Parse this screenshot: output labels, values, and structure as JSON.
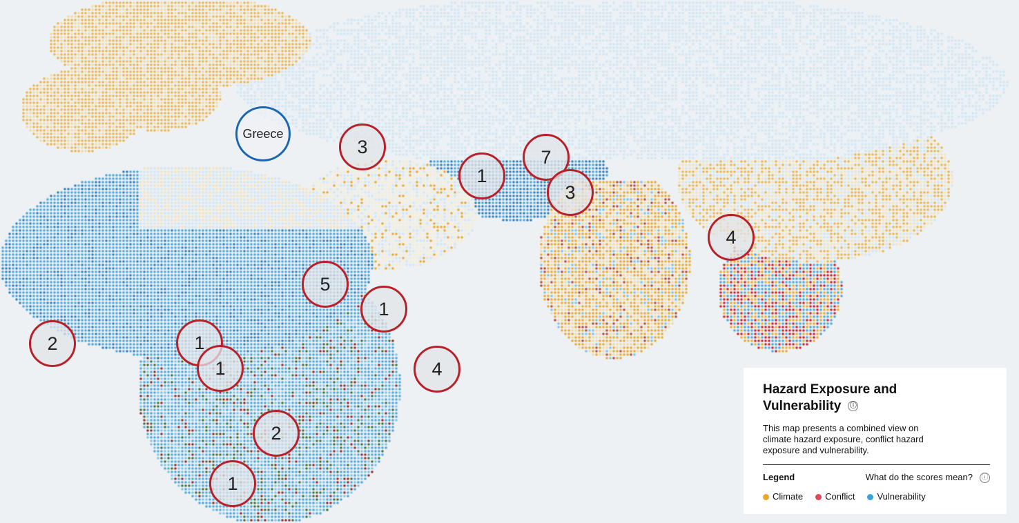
{
  "panel": {
    "title": "Hazard Exposure and Vulnerability",
    "description": "This map presents a combined view on climate hazard exposure, conflict hazard exposure and vulnerability.",
    "legend_label": "Legend",
    "scores_link": "What do the scores mean?",
    "info_icon": "ⓘ",
    "legend": [
      {
        "label": "Climate",
        "color": "#e8a92a"
      },
      {
        "label": "Conflict",
        "color": "#e0485a"
      },
      {
        "label": "Vulnerability",
        "color": "#3aa3d6"
      }
    ]
  },
  "selected_country": "Greece",
  "markers": [
    "3",
    "1",
    "7",
    "3",
    "4",
    "5",
    "1",
    "2",
    "1",
    "1",
    "4",
    "2",
    "1"
  ],
  "colors": {
    "climate": "#e8a92a",
    "conflict": "#c8202c",
    "vulnerability": "#3aa3d6",
    "marker_border": "#b8212a",
    "selected_border": "#1a66b0"
  }
}
